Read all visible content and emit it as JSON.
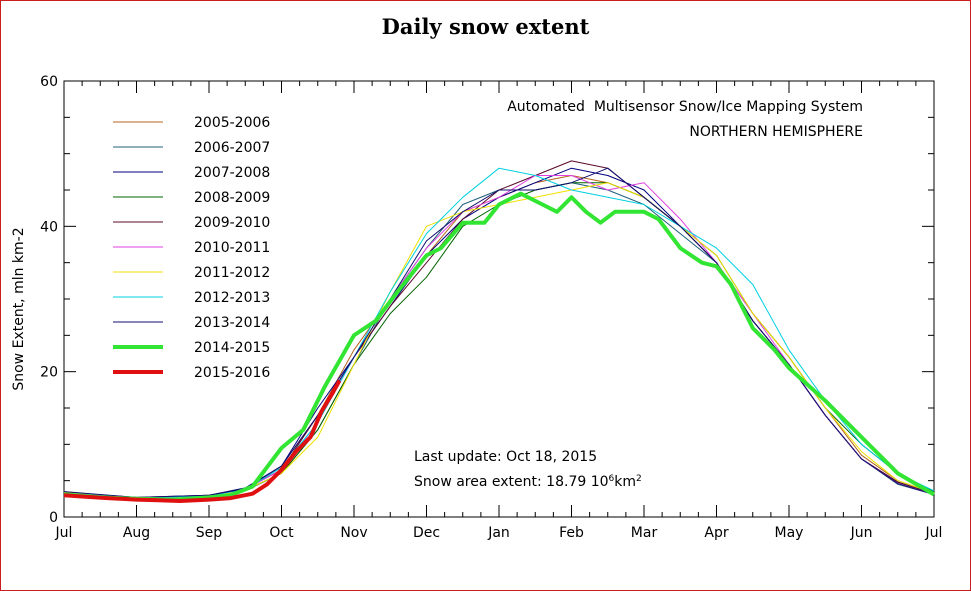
{
  "chart_data": {
    "type": "line",
    "title": "Daily snow extent",
    "ylabel": "Snow Extent, mln km-2",
    "xlabel": "",
    "ylim": [
      0,
      60
    ],
    "yticks": [
      0,
      20,
      40,
      60
    ],
    "x_months": [
      "Jul",
      "Aug",
      "Sep",
      "Oct",
      "Nov",
      "Dec",
      "Jan",
      "Feb",
      "Mar",
      "Apr",
      "May",
      "Jun",
      "Jul"
    ],
    "annotations": {
      "system_line1": "Automated  Multisensor Snow/Ice Mapping System",
      "system_line2": "NORTHERN HEMISPHERE",
      "last_update": "Last update: Oct 18, 2015",
      "area_prefix": "Snow area extent: 18.79 10",
      "area_exp1": "6",
      "area_unit": "km",
      "area_exp2": "2"
    },
    "legend": {
      "position": "top-left"
    },
    "series": [
      {
        "name": "2005-2006",
        "color": "#b5651d",
        "width": 1,
        "points": [
          [
            0,
            3.5
          ],
          [
            1,
            2.6
          ],
          [
            2,
            2.9
          ],
          [
            2.5,
            3.9
          ],
          [
            3,
            7
          ],
          [
            3.5,
            14
          ],
          [
            4,
            23
          ],
          [
            4.5,
            30
          ],
          [
            5,
            36
          ],
          [
            5.5,
            42
          ],
          [
            6,
            44
          ],
          [
            6.5,
            46
          ],
          [
            7,
            47
          ],
          [
            7.5,
            46
          ],
          [
            8,
            44
          ],
          [
            8.5,
            40
          ],
          [
            9,
            35
          ],
          [
            9.5,
            28
          ],
          [
            10,
            22
          ],
          [
            10.5,
            15
          ],
          [
            11,
            8.5
          ],
          [
            11.5,
            5
          ],
          [
            12,
            3.3
          ]
        ]
      },
      {
        "name": "2006-2007",
        "color": "#1f5f7a",
        "width": 1,
        "points": [
          [
            0,
            3.3
          ],
          [
            1,
            2.5
          ],
          [
            2,
            2.8
          ],
          [
            2.5,
            3.6
          ],
          [
            3,
            6
          ],
          [
            3.5,
            12
          ],
          [
            4,
            21
          ],
          [
            4.5,
            30
          ],
          [
            5,
            37
          ],
          [
            5.5,
            43
          ],
          [
            6,
            45
          ],
          [
            6.5,
            45
          ],
          [
            7,
            46
          ],
          [
            7.5,
            45
          ],
          [
            8,
            43
          ],
          [
            8.5,
            39
          ],
          [
            9,
            35
          ],
          [
            9.5,
            27
          ],
          [
            10,
            21
          ],
          [
            10.5,
            14
          ],
          [
            11,
            8
          ],
          [
            11.5,
            4.5
          ],
          [
            12,
            3.1
          ]
        ]
      },
      {
        "name": "2007-2008",
        "color": "#000080",
        "width": 1,
        "points": [
          [
            0,
            3.4
          ],
          [
            1,
            2.7
          ],
          [
            2,
            3.0
          ],
          [
            2.5,
            4.0
          ],
          [
            3,
            7
          ],
          [
            3.5,
            15
          ],
          [
            4,
            22
          ],
          [
            4.5,
            29
          ],
          [
            5,
            36
          ],
          [
            5.5,
            41
          ],
          [
            6,
            44
          ],
          [
            6.5,
            46
          ],
          [
            7,
            48
          ],
          [
            7.5,
            47
          ],
          [
            8,
            45
          ],
          [
            8.5,
            40
          ],
          [
            9,
            35
          ],
          [
            9.5,
            27
          ],
          [
            10,
            21
          ],
          [
            10.5,
            14
          ],
          [
            11,
            8
          ],
          [
            11.5,
            4.8
          ],
          [
            12,
            3.2
          ]
        ]
      },
      {
        "name": "2008-2009",
        "color": "#006400",
        "width": 1,
        "points": [
          [
            0,
            3.2
          ],
          [
            1,
            2.6
          ],
          [
            2,
            2.8
          ],
          [
            2.5,
            3.7
          ],
          [
            3,
            6
          ],
          [
            3.5,
            12
          ],
          [
            4,
            21
          ],
          [
            4.5,
            28
          ],
          [
            5,
            33
          ],
          [
            5.5,
            40
          ],
          [
            6,
            43
          ],
          [
            6.5,
            45
          ],
          [
            7,
            46
          ],
          [
            7.5,
            46
          ],
          [
            8,
            44
          ],
          [
            8.5,
            40
          ],
          [
            9,
            36
          ],
          [
            9.5,
            28
          ],
          [
            10,
            22
          ],
          [
            10.5,
            15
          ],
          [
            11,
            10
          ],
          [
            11.5,
            6
          ],
          [
            12,
            3.5
          ]
        ]
      },
      {
        "name": "2009-2010",
        "color": "#5a0a2a",
        "width": 1,
        "points": [
          [
            0,
            3.4
          ],
          [
            1,
            2.6
          ],
          [
            2,
            3.0
          ],
          [
            2.5,
            3.9
          ],
          [
            3,
            6.5
          ],
          [
            3.5,
            14
          ],
          [
            4,
            22
          ],
          [
            4.5,
            29
          ],
          [
            5,
            35
          ],
          [
            5.5,
            41
          ],
          [
            6,
            45
          ],
          [
            6.5,
            47
          ],
          [
            7,
            49
          ],
          [
            7.5,
            48
          ],
          [
            8,
            44
          ],
          [
            8.5,
            40
          ],
          [
            9,
            35
          ],
          [
            9.5,
            27
          ],
          [
            10,
            21
          ],
          [
            10.5,
            14
          ],
          [
            11,
            8
          ],
          [
            11.5,
            4.8
          ],
          [
            12,
            3.2
          ]
        ]
      },
      {
        "name": "2010-2011",
        "color": "#e040e0",
        "width": 1,
        "points": [
          [
            0,
            3.3
          ],
          [
            1,
            2.5
          ],
          [
            2,
            2.9
          ],
          [
            2.5,
            3.8
          ],
          [
            3,
            6.5
          ],
          [
            3.5,
            13
          ],
          [
            4,
            22
          ],
          [
            4.5,
            30
          ],
          [
            5,
            37
          ],
          [
            5.5,
            42
          ],
          [
            6,
            44
          ],
          [
            6.5,
            47
          ],
          [
            7,
            47
          ],
          [
            7.5,
            45
          ],
          [
            8,
            46
          ],
          [
            8.5,
            41
          ],
          [
            9,
            35
          ],
          [
            9.5,
            28
          ],
          [
            10,
            21
          ],
          [
            10.5,
            14
          ],
          [
            11,
            8
          ],
          [
            11.5,
            4.6
          ],
          [
            12,
            3.1
          ]
        ]
      },
      {
        "name": "2011-2012",
        "color": "#f0e000",
        "width": 1,
        "points": [
          [
            0,
            3.4
          ],
          [
            1,
            2.6
          ],
          [
            2,
            2.8
          ],
          [
            2.5,
            3.7
          ],
          [
            3,
            6
          ],
          [
            3.5,
            11
          ],
          [
            4,
            21
          ],
          [
            4.5,
            31
          ],
          [
            5,
            40
          ],
          [
            5.5,
            42
          ],
          [
            6,
            43
          ],
          [
            6.5,
            44
          ],
          [
            7,
            45
          ],
          [
            7.5,
            46
          ],
          [
            8,
            44
          ],
          [
            8.5,
            40
          ],
          [
            9,
            36
          ],
          [
            9.5,
            28
          ],
          [
            10,
            22
          ],
          [
            10.5,
            15
          ],
          [
            11,
            9
          ],
          [
            11.5,
            5
          ],
          [
            12,
            3.3
          ]
        ]
      },
      {
        "name": "2012-2013",
        "color": "#00d0e0",
        "width": 1,
        "points": [
          [
            0,
            3.3
          ],
          [
            1,
            2.6
          ],
          [
            2,
            2.9
          ],
          [
            2.5,
            3.8
          ],
          [
            3,
            6.8
          ],
          [
            3.5,
            13
          ],
          [
            4,
            22
          ],
          [
            4.5,
            31
          ],
          [
            5,
            39
          ],
          [
            5.5,
            44
          ],
          [
            6,
            48
          ],
          [
            6.5,
            47
          ],
          [
            7,
            45
          ],
          [
            7.5,
            44
          ],
          [
            8,
            43
          ],
          [
            8.5,
            40
          ],
          [
            9,
            37
          ],
          [
            9.5,
            32
          ],
          [
            10,
            23
          ],
          [
            10.5,
            16
          ],
          [
            11,
            10
          ],
          [
            11.5,
            6
          ],
          [
            12,
            3.6
          ]
        ]
      },
      {
        "name": "2013-2014",
        "color": "#101070",
        "width": 1,
        "points": [
          [
            0,
            3.5
          ],
          [
            1,
            2.7
          ],
          [
            2,
            3.0
          ],
          [
            2.5,
            3.9
          ],
          [
            3,
            7
          ],
          [
            3.5,
            14
          ],
          [
            4,
            22
          ],
          [
            4.5,
            30
          ],
          [
            5,
            38
          ],
          [
            5.5,
            42
          ],
          [
            6,
            45
          ],
          [
            6.5,
            45
          ],
          [
            7,
            46
          ],
          [
            7.5,
            48
          ],
          [
            8,
            44
          ],
          [
            8.5,
            40
          ],
          [
            9,
            35
          ],
          [
            9.5,
            27
          ],
          [
            10,
            21
          ],
          [
            10.5,
            14
          ],
          [
            11,
            8
          ],
          [
            11.5,
            4.6
          ],
          [
            12,
            3.1
          ]
        ]
      },
      {
        "name": "2014-2015",
        "color": "#33e533",
        "width": 4,
        "points": [
          [
            0,
            3.1
          ],
          [
            0.5,
            2.7
          ],
          [
            1,
            2.5
          ],
          [
            1.5,
            2.4
          ],
          [
            2,
            2.7
          ],
          [
            2.3,
            3.0
          ],
          [
            2.6,
            4.2
          ],
          [
            3,
            9.5
          ],
          [
            3.3,
            12
          ],
          [
            3.6,
            18
          ],
          [
            4,
            25
          ],
          [
            4.3,
            27
          ],
          [
            4.6,
            31
          ],
          [
            5,
            36
          ],
          [
            5.2,
            37
          ],
          [
            5.5,
            40.5
          ],
          [
            5.8,
            40.5
          ],
          [
            6,
            43
          ],
          [
            6.3,
            44.5
          ],
          [
            6.6,
            43
          ],
          [
            6.8,
            42
          ],
          [
            7,
            44
          ],
          [
            7.2,
            42
          ],
          [
            7.4,
            40.5
          ],
          [
            7.6,
            42
          ],
          [
            7.8,
            42
          ],
          [
            8,
            42
          ],
          [
            8.2,
            41
          ],
          [
            8.5,
            37
          ],
          [
            8.8,
            35
          ],
          [
            9,
            34.5
          ],
          [
            9.2,
            32
          ],
          [
            9.5,
            26
          ],
          [
            9.8,
            23
          ],
          [
            10,
            20.5
          ],
          [
            10.5,
            16
          ],
          [
            11,
            11
          ],
          [
            11.5,
            6
          ],
          [
            12,
            3.1
          ]
        ]
      },
      {
        "name": "2015-2016",
        "color": "#e01010",
        "width": 4,
        "points": [
          [
            0,
            3.0
          ],
          [
            0.3,
            2.8
          ],
          [
            0.6,
            2.6
          ],
          [
            1,
            2.4
          ],
          [
            1.3,
            2.3
          ],
          [
            1.6,
            2.2
          ],
          [
            2,
            2.4
          ],
          [
            2.3,
            2.6
          ],
          [
            2.6,
            3.2
          ],
          [
            2.8,
            4.5
          ],
          [
            3,
            6.5
          ],
          [
            3.2,
            9
          ],
          [
            3.4,
            11
          ],
          [
            3.55,
            14.5
          ],
          [
            3.7,
            17
          ],
          [
            3.8,
            18.79
          ]
        ]
      }
    ]
  }
}
